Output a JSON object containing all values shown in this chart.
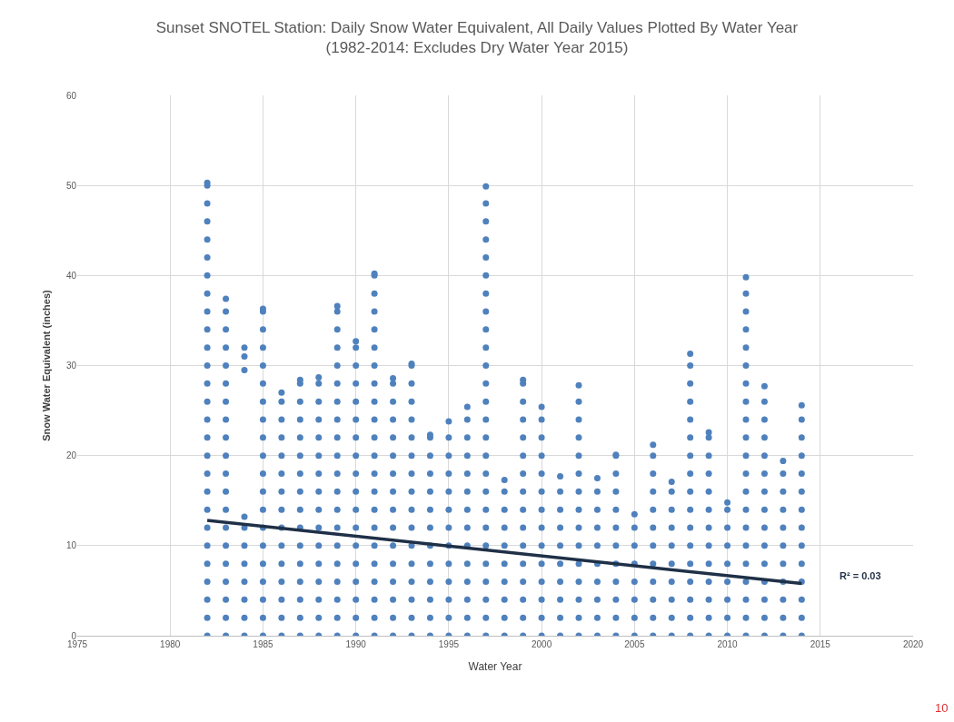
{
  "chart_data": {
    "type": "scatter",
    "title": "Sunset SNOTEL Station: Daily Snow Water Equivalent, All Daily Values Plotted By Water Year",
    "subtitle": "(1982-2014: Excludes Dry Water Year 2015)",
    "xlabel": "Water Year",
    "ylabel": "Snow Water Equivalent (inches)",
    "xlim": [
      1975,
      2020
    ],
    "xticks": [
      1975,
      1980,
      1985,
      1990,
      1995,
      2000,
      2005,
      2010,
      2015,
      2020
    ],
    "ylim": [
      0,
      60
    ],
    "yticks": [
      0,
      10,
      20,
      30,
      40,
      50,
      60
    ],
    "grid": true,
    "annotations": [
      "R² = 0.03",
      "10"
    ],
    "series": [
      {
        "color": "#4f81bd",
        "marker": "circle",
        "x": [
          1982,
          1982,
          1982,
          1982,
          1982,
          1982,
          1982,
          1982,
          1982,
          1982,
          1982,
          1982,
          1982,
          1982,
          1982,
          1982,
          1982,
          1982,
          1982,
          1982,
          1982,
          1982,
          1982,
          1982,
          1982,
          1982,
          1982,
          1983,
          1983,
          1983,
          1983,
          1983,
          1983,
          1983,
          1983,
          1983,
          1983,
          1983,
          1983,
          1983,
          1983,
          1983,
          1983,
          1983,
          1983,
          1983,
          1983,
          1984,
          1984,
          1984,
          1984,
          1984,
          1984,
          1984,
          1984,
          1984,
          1984,
          1984,
          1985,
          1985,
          1985,
          1985,
          1985,
          1985,
          1985,
          1985,
          1985,
          1985,
          1985,
          1985,
          1985,
          1985,
          1985,
          1985,
          1985,
          1985,
          1985,
          1985,
          1986,
          1986,
          1986,
          1986,
          1986,
          1986,
          1986,
          1986,
          1986,
          1986,
          1986,
          1986,
          1986,
          1986,
          1986,
          1987,
          1987,
          1987,
          1987,
          1987,
          1987,
          1987,
          1987,
          1987,
          1987,
          1987,
          1987,
          1987,
          1987,
          1987,
          1987,
          1988,
          1988,
          1988,
          1988,
          1988,
          1988,
          1988,
          1988,
          1988,
          1988,
          1988,
          1988,
          1988,
          1988,
          1988,
          1988,
          1989,
          1989,
          1989,
          1989,
          1989,
          1989,
          1989,
          1989,
          1989,
          1989,
          1989,
          1989,
          1989,
          1989,
          1989,
          1989,
          1989,
          1989,
          1989,
          1989,
          1990,
          1990,
          1990,
          1990,
          1990,
          1990,
          1990,
          1990,
          1990,
          1990,
          1990,
          1990,
          1990,
          1990,
          1990,
          1990,
          1990,
          1990,
          1991,
          1991,
          1991,
          1991,
          1991,
          1991,
          1991,
          1991,
          1991,
          1991,
          1991,
          1991,
          1991,
          1991,
          1991,
          1991,
          1991,
          1991,
          1991,
          1991,
          1991,
          1991,
          1992,
          1992,
          1992,
          1992,
          1992,
          1992,
          1992,
          1992,
          1992,
          1992,
          1992,
          1992,
          1992,
          1992,
          1992,
          1992,
          1993,
          1993,
          1993,
          1993,
          1993,
          1993,
          1993,
          1993,
          1993,
          1993,
          1993,
          1993,
          1993,
          1993,
          1993,
          1993,
          1993,
          1994,
          1994,
          1994,
          1994,
          1994,
          1994,
          1994,
          1994,
          1994,
          1994,
          1994,
          1994,
          1994,
          1995,
          1995,
          1995,
          1995,
          1995,
          1995,
          1995,
          1995,
          1995,
          1995,
          1995,
          1995,
          1995,
          1996,
          1996,
          1996,
          1996,
          1996,
          1996,
          1996,
          1996,
          1996,
          1996,
          1996,
          1996,
          1996,
          1996,
          1997,
          1997,
          1997,
          1997,
          1997,
          1997,
          1997,
          1997,
          1997,
          1997,
          1997,
          1997,
          1997,
          1997,
          1997,
          1997,
          1997,
          1997,
          1997,
          1997,
          1997,
          1997,
          1997,
          1997,
          1997,
          1997,
          1998,
          1998,
          1998,
          1998,
          1998,
          1998,
          1998,
          1998,
          1998,
          1998,
          1999,
          1999,
          1999,
          1999,
          1999,
          1999,
          1999,
          1999,
          1999,
          1999,
          1999,
          1999,
          1999,
          1999,
          1999,
          1999,
          2000,
          2000,
          2000,
          2000,
          2000,
          2000,
          2000,
          2000,
          2000,
          2000,
          2000,
          2000,
          2000,
          2000,
          2001,
          2001,
          2001,
          2001,
          2001,
          2001,
          2001,
          2001,
          2001,
          2001,
          2002,
          2002,
          2002,
          2002,
          2002,
          2002,
          2002,
          2002,
          2002,
          2002,
          2002,
          2002,
          2002,
          2002,
          2002,
          2003,
          2003,
          2003,
          2003,
          2003,
          2003,
          2003,
          2003,
          2003,
          2003,
          2004,
          2004,
          2004,
          2004,
          2004,
          2004,
          2004,
          2004,
          2004,
          2004,
          2004,
          2004,
          2005,
          2005,
          2005,
          2005,
          2005,
          2005,
          2005,
          2005,
          2006,
          2006,
          2006,
          2006,
          2006,
          2006,
          2006,
          2006,
          2006,
          2006,
          2006,
          2006,
          2007,
          2007,
          2007,
          2007,
          2007,
          2007,
          2007,
          2007,
          2007,
          2007,
          2008,
          2008,
          2008,
          2008,
          2008,
          2008,
          2008,
          2008,
          2008,
          2008,
          2008,
          2008,
          2008,
          2008,
          2008,
          2008,
          2008,
          2009,
          2009,
          2009,
          2009,
          2009,
          2009,
          2009,
          2009,
          2009,
          2009,
          2009,
          2009,
          2009,
          2010,
          2010,
          2010,
          2010,
          2010,
          2010,
          2010,
          2010,
          2010,
          2011,
          2011,
          2011,
          2011,
          2011,
          2011,
          2011,
          2011,
          2011,
          2011,
          2011,
          2011,
          2011,
          2011,
          2011,
          2011,
          2011,
          2011,
          2011,
          2011,
          2011,
          2012,
          2012,
          2012,
          2012,
          2012,
          2012,
          2012,
          2012,
          2012,
          2012,
          2012,
          2012,
          2012,
          2012,
          2012,
          2013,
          2013,
          2013,
          2013,
          2013,
          2013,
          2013,
          2013,
          2013,
          2013,
          2013,
          2014,
          2014,
          2014,
          2014,
          2014,
          2014,
          2014,
          2014,
          2014,
          2014,
          2014,
          2014,
          2014,
          2014
        ],
        "values": [
          0,
          2,
          4,
          6,
          8,
          10,
          12,
          14,
          16,
          18,
          20,
          22,
          24,
          26,
          28,
          30,
          32,
          34,
          36,
          38,
          40,
          42,
          44,
          46,
          48,
          50,
          50.3,
          0,
          2,
          4,
          6,
          8,
          10,
          12,
          14,
          16,
          18,
          20,
          22,
          24,
          26,
          28,
          30,
          32,
          34,
          36,
          37.4,
          0,
          2,
          4,
          6,
          8,
          10,
          12,
          13.2,
          29.5,
          31,
          32,
          0,
          2,
          4,
          6,
          8,
          10,
          12,
          14,
          16,
          18,
          20,
          22,
          24,
          26,
          28,
          30,
          32,
          34,
          36,
          36.3,
          0,
          2,
          4,
          6,
          8,
          10,
          12,
          14,
          16,
          18,
          20,
          22,
          24,
          26,
          27,
          0,
          2,
          4,
          6,
          8,
          10,
          12,
          14,
          16,
          18,
          20,
          22,
          24,
          26,
          28,
          28.4,
          0,
          2,
          4,
          6,
          8,
          10,
          12,
          14,
          16,
          18,
          20,
          22,
          24,
          26,
          28,
          28.7,
          0,
          2,
          4,
          6,
          8,
          10,
          12,
          14,
          16,
          18,
          20,
          22,
          24,
          26,
          28,
          30,
          32,
          34,
          36,
          36.6,
          0,
          2,
          4,
          6,
          8,
          10,
          12,
          14,
          16,
          18,
          20,
          22,
          24,
          26,
          28,
          30,
          32,
          32.7,
          0,
          2,
          4,
          6,
          8,
          10,
          12,
          14,
          16,
          18,
          20,
          22,
          24,
          26,
          28,
          30,
          32,
          34,
          36,
          38,
          40,
          40.2,
          0,
          2,
          4,
          6,
          8,
          10,
          12,
          14,
          16,
          18,
          20,
          22,
          24,
          26,
          28,
          28.6,
          0,
          2,
          4,
          6,
          8,
          10,
          12,
          14,
          16,
          18,
          20,
          22,
          24,
          26,
          28,
          30,
          30.2,
          0,
          2,
          4,
          6,
          8,
          10,
          12,
          14,
          16,
          18,
          20,
          22,
          22.3,
          0,
          2,
          4,
          6,
          8,
          10,
          12,
          14,
          16,
          18,
          20,
          22,
          23.8,
          0,
          2,
          4,
          6,
          8,
          10,
          12,
          14,
          16,
          18,
          20,
          22,
          24,
          25.4,
          0,
          2,
          4,
          6,
          8,
          10,
          12,
          14,
          16,
          18,
          20,
          22,
          24,
          26,
          28,
          30,
          32,
          34,
          36,
          38,
          40,
          42,
          44,
          46,
          48,
          49.9,
          0,
          2,
          4,
          6,
          8,
          10,
          12,
          14,
          16,
          17.3,
          0,
          2,
          4,
          6,
          8,
          10,
          12,
          14,
          16,
          18,
          20,
          22,
          24,
          26,
          28,
          28.4,
          0,
          2,
          4,
          6,
          8,
          10,
          12,
          14,
          16,
          18,
          20,
          22,
          24,
          25.4,
          0,
          2,
          4,
          6,
          8,
          10,
          12,
          14,
          16,
          17.7,
          0,
          2,
          4,
          6,
          8,
          10,
          12,
          14,
          16,
          18,
          20,
          22,
          24,
          26,
          27.8,
          0,
          2,
          4,
          6,
          8,
          10,
          12,
          14,
          16,
          17.5,
          0,
          2,
          4,
          6,
          8,
          10,
          12,
          14,
          16,
          18,
          20,
          20.1,
          0,
          2,
          4,
          6,
          8,
          10,
          12,
          13.5,
          0,
          2,
          4,
          6,
          8,
          10,
          12,
          14,
          16,
          18,
          20,
          21.2,
          0,
          2,
          4,
          6,
          8,
          10,
          12,
          14,
          16,
          17.1,
          0,
          2,
          4,
          6,
          8,
          10,
          12,
          14,
          16,
          18,
          20,
          22,
          24,
          26,
          28,
          30,
          31.3,
          0,
          2,
          4,
          6,
          8,
          10,
          12,
          14,
          16,
          18,
          20,
          22,
          22.6,
          0,
          2,
          4,
          6,
          8,
          10,
          12,
          14,
          14.8,
          0,
          2,
          4,
          6,
          8,
          10,
          12,
          14,
          16,
          18,
          20,
          22,
          24,
          26,
          28,
          30,
          32,
          34,
          36,
          38,
          39.8,
          0,
          2,
          4,
          6,
          8,
          10,
          12,
          14,
          16,
          18,
          20,
          22,
          24,
          26,
          27.7,
          0,
          2,
          4,
          6,
          8,
          10,
          12,
          14,
          16,
          18,
          19.4,
          0,
          2,
          4,
          6,
          8,
          10,
          12,
          14,
          16,
          18,
          20,
          22,
          24,
          25.6
        ]
      },
      {
        "type": "line",
        "color": "#1f3047",
        "marker": "none",
        "x": [
          1982,
          2014
        ],
        "values": [
          12.8,
          5.8
        ]
      }
    ]
  }
}
